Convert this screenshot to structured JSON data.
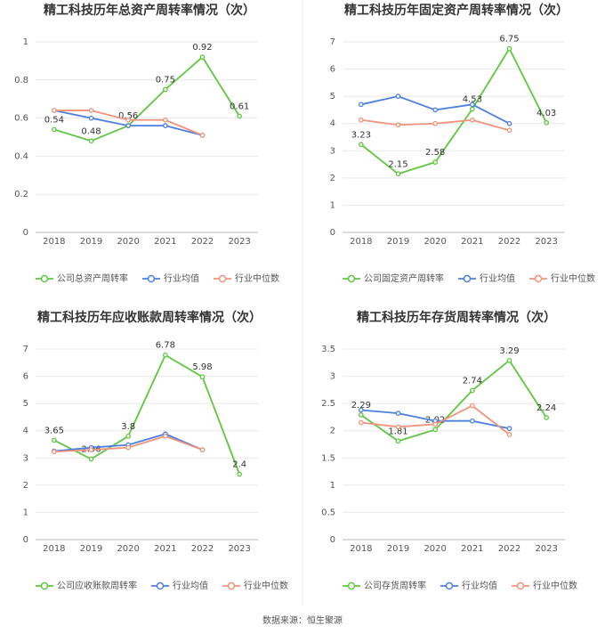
{
  "chart_data": [
    {
      "type": "line",
      "title": "精工科技历年总资产周转率情况（次）",
      "categories": [
        "2018",
        "2019",
        "2020",
        "2021",
        "2022",
        "2023"
      ],
      "ylim": [
        0,
        1
      ],
      "yticks": [
        0,
        0.2,
        0.4,
        0.6,
        0.8,
        1
      ],
      "series": [
        {
          "name": "公司总资产周转率",
          "color": "#5ec73f",
          "values": [
            0.54,
            0.48,
            0.56,
            0.75,
            0.92,
            0.61
          ],
          "labels": true
        },
        {
          "name": "行业均值",
          "color": "#4b7fe0",
          "values": [
            0.64,
            0.6,
            0.56,
            0.56,
            0.51,
            null
          ]
        },
        {
          "name": "行业中位数",
          "color": "#f0937a",
          "values": [
            0.64,
            0.64,
            0.59,
            0.59,
            0.51,
            null
          ]
        }
      ]
    },
    {
      "type": "line",
      "title": "精工科技历年固定资产周转率情况（次）",
      "categories": [
        "2018",
        "2019",
        "2020",
        "2021",
        "2022",
        "2023"
      ],
      "ylim": [
        0,
        7
      ],
      "yticks": [
        0,
        1,
        2,
        3,
        4,
        5,
        6,
        7
      ],
      "series": [
        {
          "name": "公司固定资产周转率",
          "color": "#5ec73f",
          "values": [
            3.23,
            2.15,
            2.58,
            4.53,
            6.75,
            4.03
          ],
          "labels": true
        },
        {
          "name": "行业均值",
          "color": "#4b7fe0",
          "values": [
            4.7,
            5.0,
            4.5,
            4.7,
            4.0,
            null
          ]
        },
        {
          "name": "行业中位数",
          "color": "#f0937a",
          "values": [
            4.13,
            3.95,
            4.0,
            4.13,
            3.75,
            null
          ]
        }
      ]
    },
    {
      "type": "line",
      "title": "精工科技历年应收账款周转率情况（次）",
      "categories": [
        "2018",
        "2019",
        "2020",
        "2021",
        "2022",
        "2023"
      ],
      "ylim": [
        0,
        7
      ],
      "yticks": [
        0,
        1,
        2,
        3,
        4,
        5,
        6,
        7
      ],
      "series": [
        {
          "name": "公司应收账款周转率",
          "color": "#5ec73f",
          "values": [
            3.65,
            2.96,
            3.8,
            6.78,
            5.98,
            2.4
          ],
          "labels": true
        },
        {
          "name": "行业均值",
          "color": "#4b7fe0",
          "values": [
            3.25,
            3.38,
            3.48,
            3.88,
            3.3,
            null
          ]
        },
        {
          "name": "行业中位数",
          "color": "#f0937a",
          "values": [
            3.23,
            3.3,
            3.38,
            3.8,
            3.3,
            null
          ]
        }
      ]
    },
    {
      "type": "line",
      "title": "精工科技历年存货周转率情况（次）",
      "categories": [
        "2018",
        "2019",
        "2020",
        "2021",
        "2022",
        "2023"
      ],
      "ylim": [
        0,
        3.5
      ],
      "yticks": [
        0,
        0.5,
        1,
        1.5,
        2,
        2.5,
        3,
        3.5
      ],
      "series": [
        {
          "name": "公司存货周转率",
          "color": "#5ec73f",
          "values": [
            2.29,
            1.81,
            2.02,
            2.74,
            3.29,
            2.24
          ],
          "labels": true
        },
        {
          "name": "行业均值",
          "color": "#4b7fe0",
          "values": [
            2.38,
            2.32,
            2.18,
            2.18,
            2.04,
            null
          ]
        },
        {
          "name": "行业中位数",
          "color": "#f0937a",
          "values": [
            2.15,
            2.07,
            2.12,
            2.46,
            1.93,
            null
          ]
        }
      ]
    }
  ],
  "source": "数据来源：恒生聚源"
}
